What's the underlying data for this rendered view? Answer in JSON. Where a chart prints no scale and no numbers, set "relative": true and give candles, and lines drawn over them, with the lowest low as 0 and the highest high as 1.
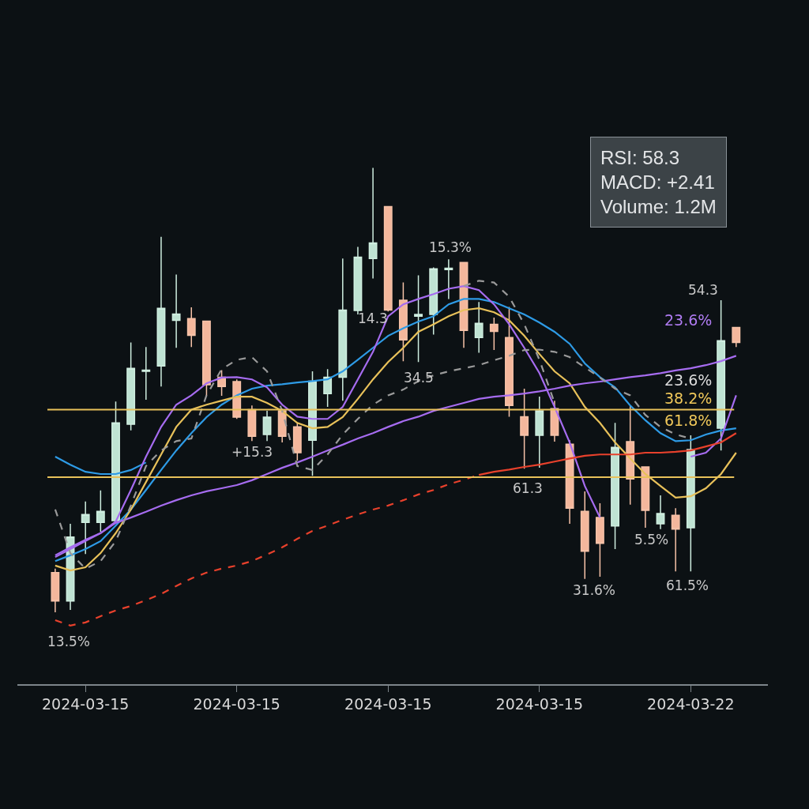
{
  "chart_data": {
    "type": "candlestick",
    "relative": true,
    "categories": [
      null,
      null,
      "2024-03-15",
      null,
      null,
      null,
      null,
      null,
      null,
      null,
      null,
      null,
      "2024-03-15",
      null,
      null,
      null,
      null,
      null,
      null,
      null,
      null,
      null,
      "2024-03-15",
      null,
      null,
      null,
      null,
      null,
      null,
      null,
      null,
      null,
      "2024-03-15",
      null,
      null,
      null,
      null,
      null,
      null,
      null,
      null,
      null,
      "2024-03-22",
      null,
      null,
      null
    ],
    "ohlc": [
      [
        0.089,
        0.098,
        0,
        0.025
      ],
      [
        0.025,
        0.199,
        0.005,
        0.169
      ],
      [
        0.202,
        0.249,
        0.131,
        0.22
      ],
      [
        0.202,
        0.274,
        0.181,
        0.227
      ],
      [
        0.206,
        0.474,
        0.202,
        0.426
      ],
      [
        0.423,
        0.607,
        0.409,
        0.549
      ],
      [
        0.542,
        0.597,
        0.478,
        0.545
      ],
      [
        0.554,
        0.845,
        0.508,
        0.684
      ],
      [
        0.657,
        0.76,
        0.595,
        0.671
      ],
      [
        0.661,
        0.686,
        0.597,
        0.623
      ],
      [
        0.655,
        0.655,
        0.487,
        0.512
      ],
      [
        0.529,
        0.545,
        0.487,
        0.508
      ],
      [
        0.519,
        0.524,
        0.435,
        0.439
      ],
      [
        0.456,
        0.465,
        0.385,
        0.396
      ],
      [
        0.4,
        0.453,
        0.385,
        0.439
      ],
      [
        0.453,
        0.458,
        0.382,
        0.396
      ],
      [
        0.417,
        0.426,
        0.341,
        0.359
      ],
      [
        0.387,
        0.542,
        0.307,
        0.52
      ],
      [
        0.492,
        0.547,
        0.462,
        0.529
      ],
      [
        0.529,
        0.796,
        0.476,
        0.68
      ],
      [
        0.679,
        0.822,
        0.67,
        0.799
      ],
      [
        0.796,
        1,
        0.751,
        0.831
      ],
      [
        0.913,
        0.913,
        0.677,
        0.68
      ],
      [
        0.702,
        0.742,
        0.565,
        0.613
      ],
      [
        0.666,
        0.758,
        0.563,
        0.67
      ],
      [
        0.67,
        0.776,
        0.625,
        0.773
      ],
      [
        0.771,
        0.794,
        0.705,
        0.774
      ],
      [
        0.787,
        0.787,
        0.595,
        0.634
      ],
      [
        0.618,
        0.698,
        0.584,
        0.65
      ],
      [
        0.648,
        0.663,
        0.59,
        0.632
      ],
      [
        0.618,
        0.687,
        0.44,
        0.465
      ],
      [
        0.44,
        0.503,
        0.323,
        0.398
      ],
      [
        0.398,
        0.485,
        0.325,
        0.453
      ],
      [
        0.458,
        0.476,
        0.384,
        0.398
      ],
      [
        0.378,
        0.387,
        0.199,
        0.234
      ],
      [
        0.227,
        0.272,
        0.075,
        0.137
      ],
      [
        0.213,
        0.245,
        0.08,
        0.155
      ],
      [
        0.194,
        0.426,
        0.142,
        0.371
      ],
      [
        0.384,
        0.465,
        0.242,
        0.3
      ],
      [
        0.327,
        0.327,
        0.19,
        0.229
      ],
      [
        0.199,
        0.263,
        0.187,
        0.222
      ],
      [
        0.218,
        0.234,
        0.092,
        0.187
      ],
      [
        0.19,
        0.398,
        0.092,
        0.366
      ],
      null,
      [
        0.414,
        0.702,
        0.364,
        0.611
      ],
      [
        0.641,
        0.641,
        0.597,
        0.607
      ]
    ],
    "series": [
      {
        "type": "line",
        "color": "#2e9be6",
        "line_style": "solid",
        "values": [
          0.115,
          0.128,
          0.142,
          0.16,
          0.195,
          0.231,
          0.275,
          0.32,
          0.364,
          0.403,
          0.439,
          0.467,
          0.488,
          0.503,
          0.51,
          0.513,
          0.517,
          0.52,
          0.524,
          0.542,
          0.568,
          0.595,
          0.622,
          0.639,
          0.654,
          0.666,
          0.693,
          0.705,
          0.705,
          0.698,
          0.684,
          0.67,
          0.652,
          0.631,
          0.604,
          0.56,
          0.529,
          0.506,
          0.465,
          0.432,
          0.403,
          0.385,
          0.387,
          0.4,
          0.409,
          0.414
        ]
      },
      {
        "type": "line",
        "color": "#2e9be6",
        "line_style": "solid",
        "values": [
          0.35,
          0.332,
          0.316,
          0.311,
          0.311,
          0.32,
          0.337,
          null,
          null,
          null,
          null,
          null,
          null,
          null,
          null,
          null,
          null,
          null,
          null,
          null,
          null,
          null,
          null,
          null,
          null,
          null,
          null,
          null,
          null,
          null,
          null,
          null,
          null,
          null,
          null,
          null,
          null,
          null,
          null,
          null,
          null,
          null,
          null,
          null,
          null,
          null
        ]
      },
      {
        "type": "line",
        "color": "#e8c15a",
        "line_style": "solid",
        "values": [
          0.105,
          0.094,
          0.101,
          0.133,
          0.178,
          0.231,
          0.293,
          0.355,
          0.417,
          0.456,
          0.467,
          0.476,
          0.485,
          0.485,
          0.471,
          0.453,
          0.426,
          0.414,
          0.417,
          0.439,
          0.48,
          0.524,
          0.563,
          0.595,
          0.631,
          0.648,
          0.666,
          0.68,
          0.684,
          0.675,
          0.657,
          0.622,
          0.581,
          0.542,
          0.515,
          0.462,
          0.426,
          0.382,
          0.346,
          0.311,
          0.284,
          0.258,
          0.261,
          0.279,
          0.311,
          0.359
        ]
      },
      {
        "type": "line",
        "color": "#a66cf0",
        "line_style": "solid",
        "values": [
          0.128,
          0.146,
          0.163,
          0.178,
          0.204,
          0.275,
          0.35,
          0.417,
          0.467,
          0.488,
          0.515,
          0.528,
          0.529,
          0.524,
          0.506,
          0.467,
          0.44,
          0.435,
          0.435,
          0.462,
          0.524,
          0.586,
          0.666,
          0.693,
          0.705,
          0.716,
          0.728,
          0.734,
          0.725,
          0.693,
          0.648,
          0.595,
          0.538,
          0.462,
          0.382,
          0.284,
          0.213,
          null,
          null,
          null,
          null,
          null,
          0.35,
          0.359,
          0.391,
          0.488
        ]
      },
      {
        "type": "line",
        "color": "#a66cf0",
        "line_style": "solid",
        "values": [
          0.124,
          0.142,
          0.16,
          0.178,
          0.201,
          0.213,
          0.226,
          0.24,
          0.252,
          0.263,
          0.272,
          0.279,
          0.286,
          0.297,
          0.311,
          0.325,
          0.337,
          0.35,
          0.364,
          0.377,
          0.391,
          0.403,
          0.417,
          0.43,
          0.44,
          0.453,
          0.462,
          0.471,
          0.48,
          0.485,
          0.488,
          0.492,
          0.497,
          0.503,
          0.51,
          0.515,
          0.519,
          0.524,
          0.529,
          0.533,
          0.538,
          0.544,
          0.549,
          0.556,
          0.565,
          0.577
        ]
      },
      {
        "type": "line",
        "color": "#9a9a9a",
        "line_style": "dashed",
        "values": [
          0.231,
          0.133,
          0.098,
          0.115,
          0.16,
          0.24,
          0.329,
          0.364,
          0.385,
          0.391,
          0.488,
          0.547,
          0.568,
          0.574,
          0.542,
          0.453,
          0.329,
          0.32,
          0.355,
          0.4,
          0.435,
          0.467,
          0.488,
          0.501,
          0.52,
          0.533,
          0.542,
          0.549,
          0.556,
          0.567,
          0.577,
          0.59,
          0.591,
          0.586,
          0.574,
          0.551,
          0.528,
          0.503,
          0.488,
          0.444,
          0.417,
          0.4,
          0.391,
          null,
          null,
          null
        ]
      },
      {
        "type": "line",
        "color": "#9a9a9a",
        "line_style": "dashed",
        "values": [
          null,
          null,
          null,
          null,
          null,
          null,
          null,
          null,
          null,
          null,
          null,
          null,
          null,
          null,
          null,
          null,
          null,
          null,
          null,
          null,
          null,
          null,
          null,
          null,
          null,
          null,
          null,
          0.734,
          0.746,
          0.742,
          0.71,
          0.648,
          0.568,
          0.471,
          null,
          null,
          null,
          null,
          null,
          null,
          null,
          null,
          null,
          null,
          null,
          null
        ]
      },
      {
        "type": "line",
        "color": "#e8412c",
        "line_style": "dashed",
        "values": [
          -0.018,
          -0.03,
          -0.023,
          -0.009,
          0.004,
          0.014,
          0.027,
          0.041,
          0.059,
          0.076,
          0.089,
          0.098,
          0.105,
          0.115,
          0.13,
          0.146,
          0.165,
          0.183,
          0.195,
          0.208,
          0.22,
          0.231,
          0.24,
          0.252,
          0.265,
          0.275,
          0.288,
          0.298,
          0.309,
          null,
          null,
          null,
          null,
          null,
          null,
          null,
          null,
          null,
          null,
          null,
          null,
          null,
          null,
          null,
          null,
          null
        ]
      },
      {
        "type": "line",
        "color": "#e8412c",
        "line_style": "solid",
        "values": [
          null,
          null,
          null,
          null,
          null,
          null,
          null,
          null,
          null,
          null,
          null,
          null,
          null,
          null,
          null,
          null,
          null,
          null,
          null,
          null,
          null,
          null,
          null,
          null,
          null,
          null,
          null,
          null,
          0.309,
          0.316,
          0.321,
          0.327,
          0.332,
          0.339,
          0.346,
          0.352,
          0.355,
          0.355,
          0.355,
          0.359,
          0.359,
          0.361,
          0.364,
          0.373,
          0.382,
          0.403
        ]
      }
    ],
    "ref_lines": [
      {
        "axis": "y",
        "value": 0.456,
        "color": "#e8c15a"
      },
      {
        "axis": "y",
        "value": 0.304,
        "color": "#e8c15a"
      }
    ],
    "annotations": [
      "RSI: 58.3",
      "MACD: +2.41",
      "Volume: 1.2M",
      "13.5%",
      "+15.3",
      "14.3",
      "15.3%",
      "34.5",
      "61.3",
      "31.6%",
      "5.5%",
      "61.5%",
      "54.3",
      "23.6%",
      "23.6%",
      "38.2%",
      "61.8%"
    ]
  }
}
